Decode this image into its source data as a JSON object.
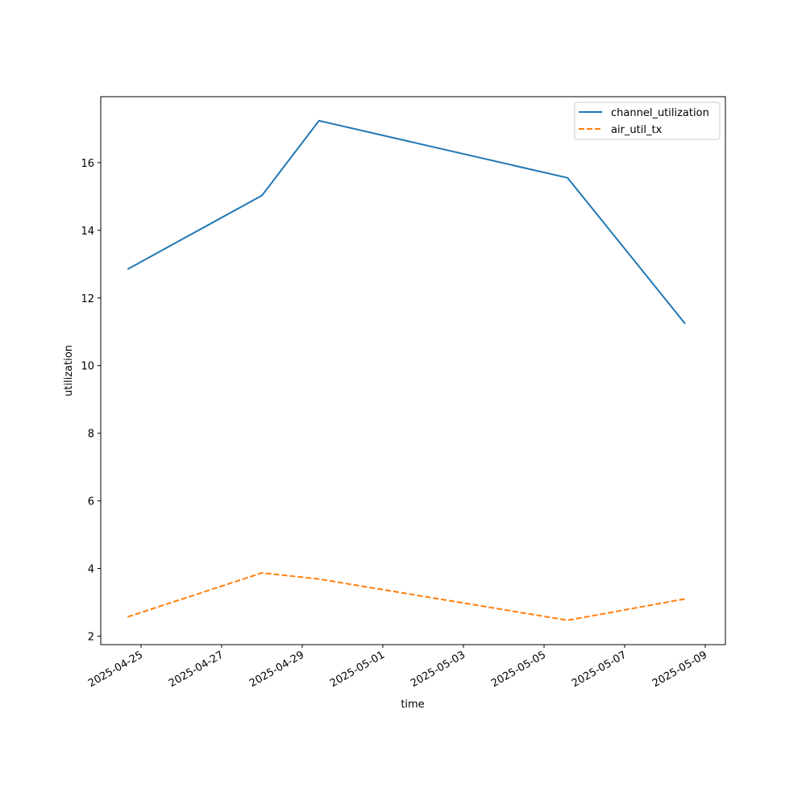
{
  "chart_data": {
    "type": "line",
    "title": "",
    "xlabel": "time",
    "ylabel": "utilization",
    "x_axis_type": "date",
    "xlim": [
      "2025-04-24T00:00",
      "2025-05-09T12:00"
    ],
    "ylim": [
      1.75,
      17.95
    ],
    "x_ticks": [
      "2025-04-25",
      "2025-04-27",
      "2025-04-29",
      "2025-05-01",
      "2025-05-03",
      "2025-05-05",
      "2025-05-07",
      "2025-05-09"
    ],
    "y_ticks": [
      "2",
      "4",
      "6",
      "8",
      "10",
      "12",
      "14",
      "16"
    ],
    "grid": false,
    "legend_position": "upper right",
    "series": [
      {
        "name": "channel_utilization",
        "color": "#1f77b4",
        "line_style": "solid",
        "points": [
          {
            "x": "2025-04-24T16:00",
            "y": 12.85
          },
          {
            "x": "2025-04-28T00:00",
            "y": 15.03
          },
          {
            "x": "2025-04-29T10:00",
            "y": 17.24
          },
          {
            "x": "2025-05-05T14:00",
            "y": 15.55
          },
          {
            "x": "2025-05-08T12:00",
            "y": 11.24
          }
        ]
      },
      {
        "name": "air_util_tx",
        "color": "#ff7f0e",
        "line_style": "dashed",
        "points": [
          {
            "x": "2025-04-24T16:00",
            "y": 2.57
          },
          {
            "x": "2025-04-28T00:00",
            "y": 3.87
          },
          {
            "x": "2025-04-29T10:00",
            "y": 3.69
          },
          {
            "x": "2025-05-05T14:00",
            "y": 2.47
          },
          {
            "x": "2025-05-08T12:00",
            "y": 3.1
          }
        ]
      }
    ]
  }
}
